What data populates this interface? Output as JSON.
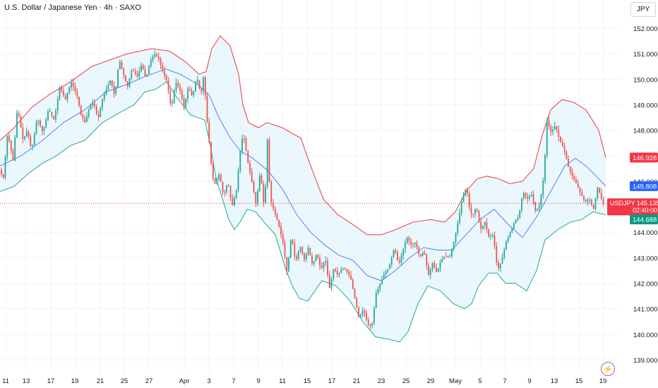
{
  "header": {
    "title": "U.S. Dollar / Japanese Yen · 4h · SAXO",
    "currency": "JPY"
  },
  "colors": {
    "up": "#26a69a",
    "down": "#ef5350",
    "upper_band": "#f23645",
    "lower_band": "#22ab94",
    "basis": "#2962ff",
    "band_fill": "#e3f4fb",
    "current_price_line": "#f23645"
  },
  "chart_data": {
    "type": "candlestick",
    "title": "U.S. Dollar / Japanese Yen · 4h · SAXO",
    "ylim": [
      138.75,
      152.45
    ],
    "y_ticks": [
      139.0,
      140.0,
      141.0,
      142.0,
      143.0,
      144.0,
      145.0,
      146.0,
      147.0,
      148.0,
      149.0,
      150.0,
      151.0,
      152.0
    ],
    "y_tick_labels": [
      "139.000",
      "140.000",
      "141.000",
      "142.000",
      "143.000",
      "144.000",
      "145.000",
      "146.000",
      "147.000",
      "148.000",
      "149.000",
      "150.000",
      "151.000",
      "152.000"
    ],
    "x_tick_labels": [
      "11",
      "13",
      "17",
      "19",
      "21",
      "25",
      "27",
      "Apr",
      "3",
      "7",
      "9",
      "11",
      "15",
      "17",
      "21",
      "23",
      "25",
      "29",
      "May",
      "5",
      "7",
      "9",
      "13",
      "15",
      "19"
    ],
    "grid": true,
    "price_labels": [
      {
        "name": "upper-band-label",
        "value": 146.928,
        "text": "146.928"
      },
      {
        "name": "basis-label",
        "value": 145.808,
        "text": "145.808"
      },
      {
        "name": "current-price-label",
        "value": 145.135,
        "text": "USDJPY  145.135",
        "sub": "02:40:00"
      },
      {
        "name": "lower-band-label",
        "value": 144.688,
        "text": "144.688"
      }
    ],
    "current_price": 145.135,
    "path_points": [
      [
        0,
        146.5
      ],
      [
        6,
        146.1
      ],
      [
        12,
        147.9
      ],
      [
        20,
        146.8
      ],
      [
        26,
        148.9
      ],
      [
        34,
        147.6
      ],
      [
        40,
        148.0
      ],
      [
        46,
        147.2
      ],
      [
        54,
        148.5
      ],
      [
        62,
        147.9
      ],
      [
        70,
        148.8
      ],
      [
        78,
        148.4
      ],
      [
        86,
        149.7
      ],
      [
        94,
        149.2
      ],
      [
        102,
        149.9
      ],
      [
        110,
        149.4
      ],
      [
        116,
        148.6
      ],
      [
        122,
        148.3
      ],
      [
        128,
        148.9
      ],
      [
        134,
        149.1
      ],
      [
        140,
        148.4
      ],
      [
        146,
        149.2
      ],
      [
        152,
        149.6
      ],
      [
        158,
        150.0
      ],
      [
        164,
        149.3
      ],
      [
        170,
        150.8
      ],
      [
        176,
        150.2
      ],
      [
        182,
        149.7
      ],
      [
        188,
        150.4
      ],
      [
        196,
        150.1
      ],
      [
        202,
        150.6
      ],
      [
        208,
        150.0
      ],
      [
        214,
        150.7
      ],
      [
        220,
        151.0
      ],
      [
        226,
        150.8
      ],
      [
        232,
        150.3
      ],
      [
        238,
        149.9
      ],
      [
        244,
        148.8
      ],
      [
        250,
        149.9
      ],
      [
        256,
        149.6
      ],
      [
        262,
        148.9
      ],
      [
        268,
        149.7
      ],
      [
        274,
        149.3
      ],
      [
        280,
        150.1
      ],
      [
        286,
        149.4
      ],
      [
        290,
        150.2
      ],
      [
        294,
        148.6
      ],
      [
        298,
        147.4
      ],
      [
        302,
        146.2
      ],
      [
        306,
        145.9
      ],
      [
        312,
        146.3
      ],
      [
        318,
        145.4
      ],
      [
        324,
        146.0
      ],
      [
        330,
        145.0
      ],
      [
        336,
        145.6
      ],
      [
        342,
        147.3
      ],
      [
        346,
        147.9
      ],
      [
        352,
        146.8
      ],
      [
        358,
        146.0
      ],
      [
        364,
        145.1
      ],
      [
        370,
        146.4
      ],
      [
        376,
        144.8
      ],
      [
        380,
        147.7
      ],
      [
        384,
        145.3
      ],
      [
        390,
        144.8
      ],
      [
        396,
        144.3
      ],
      [
        402,
        143.6
      ],
      [
        408,
        142.4
      ],
      [
        414,
        143.9
      ],
      [
        420,
        142.8
      ],
      [
        426,
        143.5
      ],
      [
        432,
        142.9
      ],
      [
        438,
        143.4
      ],
      [
        444,
        142.7
      ],
      [
        450,
        143.2
      ],
      [
        456,
        142.5
      ],
      [
        462,
        143.0
      ],
      [
        468,
        141.8
      ],
      [
        474,
        142.6
      ],
      [
        480,
        142.3
      ],
      [
        486,
        142.6
      ],
      [
        492,
        142.5
      ],
      [
        498,
        142.2
      ],
      [
        504,
        141.4
      ],
      [
        510,
        140.6
      ],
      [
        516,
        141.0
      ],
      [
        522,
        140.4
      ],
      [
        528,
        140.3
      ],
      [
        534,
        141.6
      ],
      [
        540,
        142.0
      ],
      [
        546,
        142.4
      ],
      [
        552,
        142.6
      ],
      [
        556,
        143.0
      ],
      [
        560,
        143.4
      ],
      [
        566,
        142.7
      ],
      [
        572,
        143.3
      ],
      [
        578,
        143.8
      ],
      [
        584,
        143.5
      ],
      [
        590,
        143.6
      ],
      [
        596,
        143.0
      ],
      [
        602,
        143.3
      ],
      [
        608,
        142.3
      ],
      [
        614,
        142.8
      ],
      [
        620,
        142.4
      ],
      [
        626,
        142.9
      ],
      [
        632,
        143.1
      ],
      [
        638,
        143.0
      ],
      [
        644,
        143.6
      ],
      [
        650,
        144.4
      ],
      [
        656,
        145.3
      ],
      [
        662,
        145.8
      ],
      [
        666,
        145.0
      ],
      [
        670,
        144.6
      ],
      [
        676,
        145.0
      ],
      [
        682,
        144.1
      ],
      [
        688,
        144.4
      ],
      [
        694,
        143.8
      ],
      [
        700,
        143.9
      ],
      [
        706,
        142.5
      ],
      [
        712,
        142.9
      ],
      [
        718,
        143.6
      ],
      [
        724,
        144.0
      ],
      [
        730,
        144.4
      ],
      [
        736,
        144.6
      ],
      [
        742,
        145.6
      ],
      [
        748,
        145.3
      ],
      [
        754,
        145.5
      ],
      [
        760,
        144.8
      ],
      [
        766,
        145.1
      ],
      [
        772,
        146.3
      ],
      [
        776,
        148.4
      ],
      [
        782,
        147.9
      ],
      [
        788,
        148.2
      ],
      [
        794,
        147.6
      ],
      [
        800,
        147.3
      ],
      [
        806,
        146.6
      ],
      [
        812,
        146.2
      ],
      [
        818,
        145.9
      ],
      [
        824,
        145.5
      ],
      [
        830,
        145.2
      ],
      [
        836,
        145.3
      ],
      [
        842,
        144.9
      ],
      [
        848,
        145.8
      ],
      [
        852,
        145.4
      ],
      [
        856,
        145.135
      ]
    ],
    "bands": {
      "upper": [
        [
          0,
          147.6
        ],
        [
          20,
          148.1
        ],
        [
          45,
          148.9
        ],
        [
          70,
          149.4
        ],
        [
          100,
          149.9
        ],
        [
          130,
          150.5
        ],
        [
          160,
          150.8
        ],
        [
          180,
          151.0
        ],
        [
          215,
          151.2
        ],
        [
          240,
          151.1
        ],
        [
          262,
          150.7
        ],
        [
          282,
          150.2
        ],
        [
          292,
          150.3
        ],
        [
          300,
          151.2
        ],
        [
          312,
          151.7
        ],
        [
          326,
          151.3
        ],
        [
          338,
          150.2
        ],
        [
          344,
          149.0
        ],
        [
          352,
          148.3
        ],
        [
          366,
          148.1
        ],
        [
          378,
          148.3
        ],
        [
          400,
          148.1
        ],
        [
          412,
          147.9
        ],
        [
          426,
          147.7
        ],
        [
          440,
          146.6
        ],
        [
          458,
          145.3
        ],
        [
          478,
          144.7
        ],
        [
          500,
          144.3
        ],
        [
          520,
          143.9
        ],
        [
          540,
          143.9
        ],
        [
          560,
          144.1
        ],
        [
          585,
          144.4
        ],
        [
          610,
          144.5
        ],
        [
          630,
          144.4
        ],
        [
          645,
          144.8
        ],
        [
          660,
          145.6
        ],
        [
          676,
          146.1
        ],
        [
          690,
          146.2
        ],
        [
          706,
          146.1
        ],
        [
          722,
          145.9
        ],
        [
          740,
          146.0
        ],
        [
          756,
          146.5
        ],
        [
          768,
          147.8
        ],
        [
          780,
          148.8
        ],
        [
          796,
          149.2
        ],
        [
          812,
          149.1
        ],
        [
          830,
          148.8
        ],
        [
          848,
          148.0
        ],
        [
          858,
          146.928
        ]
      ],
      "basis": [
        [
          0,
          146.6
        ],
        [
          30,
          147.0
        ],
        [
          60,
          147.6
        ],
        [
          90,
          148.3
        ],
        [
          120,
          148.8
        ],
        [
          150,
          149.5
        ],
        [
          180,
          149.8
        ],
        [
          205,
          150.1
        ],
        [
          235,
          150.4
        ],
        [
          255,
          150.2
        ],
        [
          280,
          149.8
        ],
        [
          296,
          149.4
        ],
        [
          310,
          148.5
        ],
        [
          326,
          147.7
        ],
        [
          340,
          147.2
        ],
        [
          358,
          146.9
        ],
        [
          380,
          146.4
        ],
        [
          400,
          145.7
        ],
        [
          420,
          144.7
        ],
        [
          440,
          144.0
        ],
        [
          460,
          143.5
        ],
        [
          480,
          143.1
        ],
        [
          500,
          142.9
        ],
        [
          520,
          142.3
        ],
        [
          540,
          142.1
        ],
        [
          560,
          142.5
        ],
        [
          580,
          143.0
        ],
        [
          600,
          143.4
        ],
        [
          620,
          143.3
        ],
        [
          640,
          143.3
        ],
        [
          660,
          143.9
        ],
        [
          680,
          144.5
        ],
        [
          700,
          144.9
        ],
        [
          720,
          144.3
        ],
        [
          740,
          143.8
        ],
        [
          760,
          144.6
        ],
        [
          780,
          145.6
        ],
        [
          800,
          146.6
        ],
        [
          815,
          146.9
        ],
        [
          830,
          146.6
        ],
        [
          848,
          146.1
        ],
        [
          858,
          145.808
        ]
      ],
      "lower": [
        [
          0,
          145.6
        ],
        [
          20,
          145.8
        ],
        [
          40,
          146.3
        ],
        [
          60,
          146.7
        ],
        [
          80,
          147.0
        ],
        [
          100,
          147.4
        ],
        [
          120,
          147.6
        ],
        [
          145,
          148.3
        ],
        [
          170,
          148.7
        ],
        [
          190,
          149.0
        ],
        [
          205,
          149.5
        ],
        [
          220,
          149.6
        ],
        [
          236,
          149.9
        ],
        [
          250,
          149.3
        ],
        [
          270,
          148.6
        ],
        [
          290,
          148.4
        ],
        [
          298,
          147.4
        ],
        [
          306,
          146.1
        ],
        [
          314,
          145.4
        ],
        [
          324,
          144.5
        ],
        [
          332,
          144.1
        ],
        [
          340,
          144.4
        ],
        [
          350,
          144.9
        ],
        [
          362,
          144.8
        ],
        [
          374,
          144.4
        ],
        [
          390,
          143.9
        ],
        [
          404,
          142.6
        ],
        [
          414,
          141.9
        ],
        [
          424,
          141.4
        ],
        [
          436,
          141.3
        ],
        [
          456,
          142.1
        ],
        [
          476,
          141.9
        ],
        [
          496,
          141.3
        ],
        [
          514,
          140.5
        ],
        [
          532,
          139.9
        ],
        [
          552,
          139.8
        ],
        [
          566,
          139.7
        ],
        [
          578,
          140.1
        ],
        [
          592,
          141.2
        ],
        [
          606,
          141.9
        ],
        [
          624,
          141.7
        ],
        [
          642,
          141.2
        ],
        [
          658,
          141.0
        ],
        [
          668,
          141.2
        ],
        [
          678,
          141.9
        ],
        [
          692,
          142.4
        ],
        [
          704,
          142.4
        ],
        [
          716,
          142.0
        ],
        [
          730,
          142.0
        ],
        [
          746,
          141.7
        ],
        [
          760,
          142.5
        ],
        [
          772,
          143.7
        ],
        [
          790,
          144.1
        ],
        [
          808,
          144.4
        ],
        [
          824,
          144.5
        ],
        [
          840,
          144.8
        ],
        [
          858,
          144.688
        ]
      ]
    }
  }
}
